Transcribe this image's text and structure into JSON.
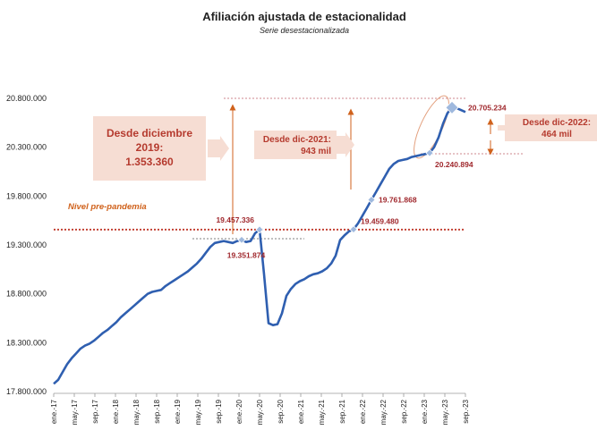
{
  "chart_data": {
    "type": "line",
    "title": "Afiliación ajustada de estacionalidad",
    "subtitle": "Serie desestacionalizada",
    "xlabel": "",
    "ylabel": "",
    "ylim": [
      17800000,
      20800000
    ],
    "yticks": [
      "17.800.000",
      "18.300.000",
      "18.800.000",
      "19.300.000",
      "19.800.000",
      "20.300.000",
      "20.800.000"
    ],
    "ytick_values": [
      17800000,
      18300000,
      18800000,
      19300000,
      19800000,
      20300000,
      20800000
    ],
    "xticks": [
      "ene.-17",
      "may.-17",
      "sep.-17",
      "ene.-18",
      "may.-18",
      "sep.-18",
      "ene.-19",
      "may.-19",
      "sep.-19",
      "ene.-20",
      "may.-20",
      "sep.-20",
      "ene.-21",
      "may.-21",
      "sep.-21",
      "ene.-22",
      "may.-22",
      "sep.-22",
      "ene.-23",
      "may.-23",
      "sep.-23"
    ],
    "grid": false,
    "legend": "none",
    "series": [
      {
        "color": "#2f5fb0",
        "values": [
          17880000,
          17920000,
          18000000,
          18080000,
          18140000,
          18190000,
          18240000,
          18270000,
          18290000,
          18320000,
          18360000,
          18400000,
          18430000,
          18470000,
          18510000,
          18560000,
          18600000,
          18640000,
          18680000,
          18720000,
          18760000,
          18800000,
          18820000,
          18830000,
          18840000,
          18880000,
          18910000,
          18940000,
          18970000,
          19000000,
          19030000,
          19070000,
          19110000,
          19160000,
          19220000,
          19280000,
          19320000,
          19330000,
          19340000,
          19330000,
          19320000,
          19340000,
          19351874,
          19330000,
          19340000,
          19420000,
          19457336,
          19000000,
          18500000,
          18480000,
          18490000,
          18600000,
          18780000,
          18850000,
          18900000,
          18930000,
          18950000,
          18980000,
          19000000,
          19010000,
          19030000,
          19060000,
          19110000,
          19190000,
          19350000,
          19400000,
          19440000,
          19459480,
          19520000,
          19600000,
          19680000,
          19761868,
          19840000,
          19920000,
          20000000,
          20080000,
          20130000,
          20160000,
          20170000,
          20180000,
          20200000,
          20210000,
          20220000,
          20230000,
          20240894,
          20300000,
          20400000,
          20540000,
          20650000,
          20705234,
          20700000,
          20680000,
          20660000
        ]
      }
    ],
    "markers": [
      {
        "index": 42,
        "label": "19.351.874"
      },
      {
        "index": 46,
        "label": "19.457.336"
      },
      {
        "index": 67,
        "label": "19.459.480"
      },
      {
        "index": 71,
        "label": "19.761.868"
      },
      {
        "index": 84,
        "label": "20.240.894"
      },
      {
        "index": 89,
        "label": "20.705.234"
      }
    ],
    "prepandemic_level": 19457336,
    "prepandemic_label": "Nivel pre-pandemia",
    "boxes": [
      {
        "lines": [
          "Desde diciembre",
          "2019:",
          "1.353.360"
        ]
      },
      {
        "lines": [
          "Desde dic-2021:",
          "943 mil"
        ]
      },
      {
        "lines": [
          "Desde dic-2022:",
          "464 mil"
        ]
      }
    ]
  }
}
